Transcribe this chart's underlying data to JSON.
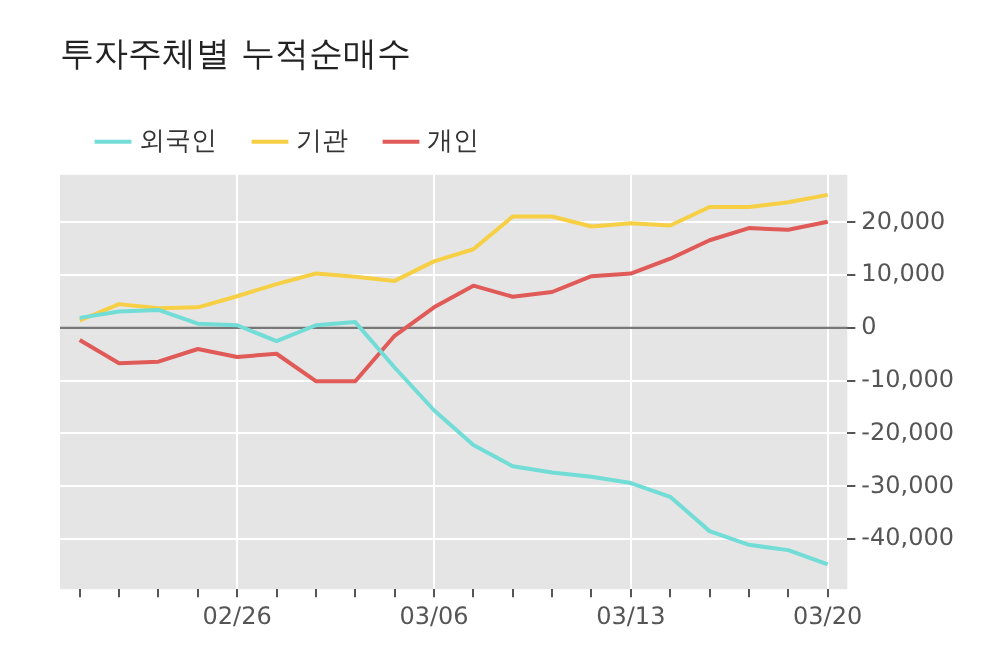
{
  "chart_data": {
    "type": "line",
    "title": "투자주체별 누적순매수",
    "categories": [
      null,
      null,
      null,
      null,
      "02/26",
      null,
      null,
      null,
      null,
      "03/06",
      null,
      null,
      null,
      null,
      "03/13",
      null,
      null,
      null,
      null,
      "03/20"
    ],
    "series": [
      {
        "name": "외국인",
        "color": "#72dcd6",
        "values": [
          1900,
          3100,
          3400,
          800,
          500,
          -2500,
          500,
          1100,
          -7500,
          -15600,
          -22200,
          -26200,
          -27400,
          -28200,
          -29400,
          -32000,
          -38500,
          -41100,
          -42100,
          -44800
        ]
      },
      {
        "name": "기관",
        "color": "#f7cf45",
        "values": [
          1400,
          4500,
          3700,
          3900,
          6000,
          8300,
          10300,
          9700,
          8900,
          12600,
          14900,
          21100,
          21100,
          19200,
          19800,
          19400,
          22900,
          22900,
          23800,
          25200
        ]
      },
      {
        "name": "개인",
        "color": "#e05a57",
        "values": [
          -2300,
          -6700,
          -6400,
          -4000,
          -5500,
          -4900,
          -10100,
          -10100,
          -1500,
          3900,
          8000,
          5900,
          6800,
          9800,
          10300,
          13100,
          16600,
          18900,
          18600,
          20100
        ]
      }
    ],
    "ylim": [
      -49500,
      29000
    ],
    "yticks": [
      {
        "value": -40000,
        "label": "-40,000"
      },
      {
        "value": -30000,
        "label": "-30,000"
      },
      {
        "value": -20000,
        "label": "-20,000"
      },
      {
        "value": -10000,
        "label": "-10,000"
      },
      0,
      {
        "value": 10000,
        "label": "10,000"
      },
      {
        "value": 20000,
        "label": "20,000"
      }
    ],
    "ref_lines": [
      {
        "axis": "y",
        "value": 0,
        "color": "#777777"
      }
    ],
    "grid": true,
    "legend": "top left",
    "marker": "none",
    "line_style": "solid"
  }
}
